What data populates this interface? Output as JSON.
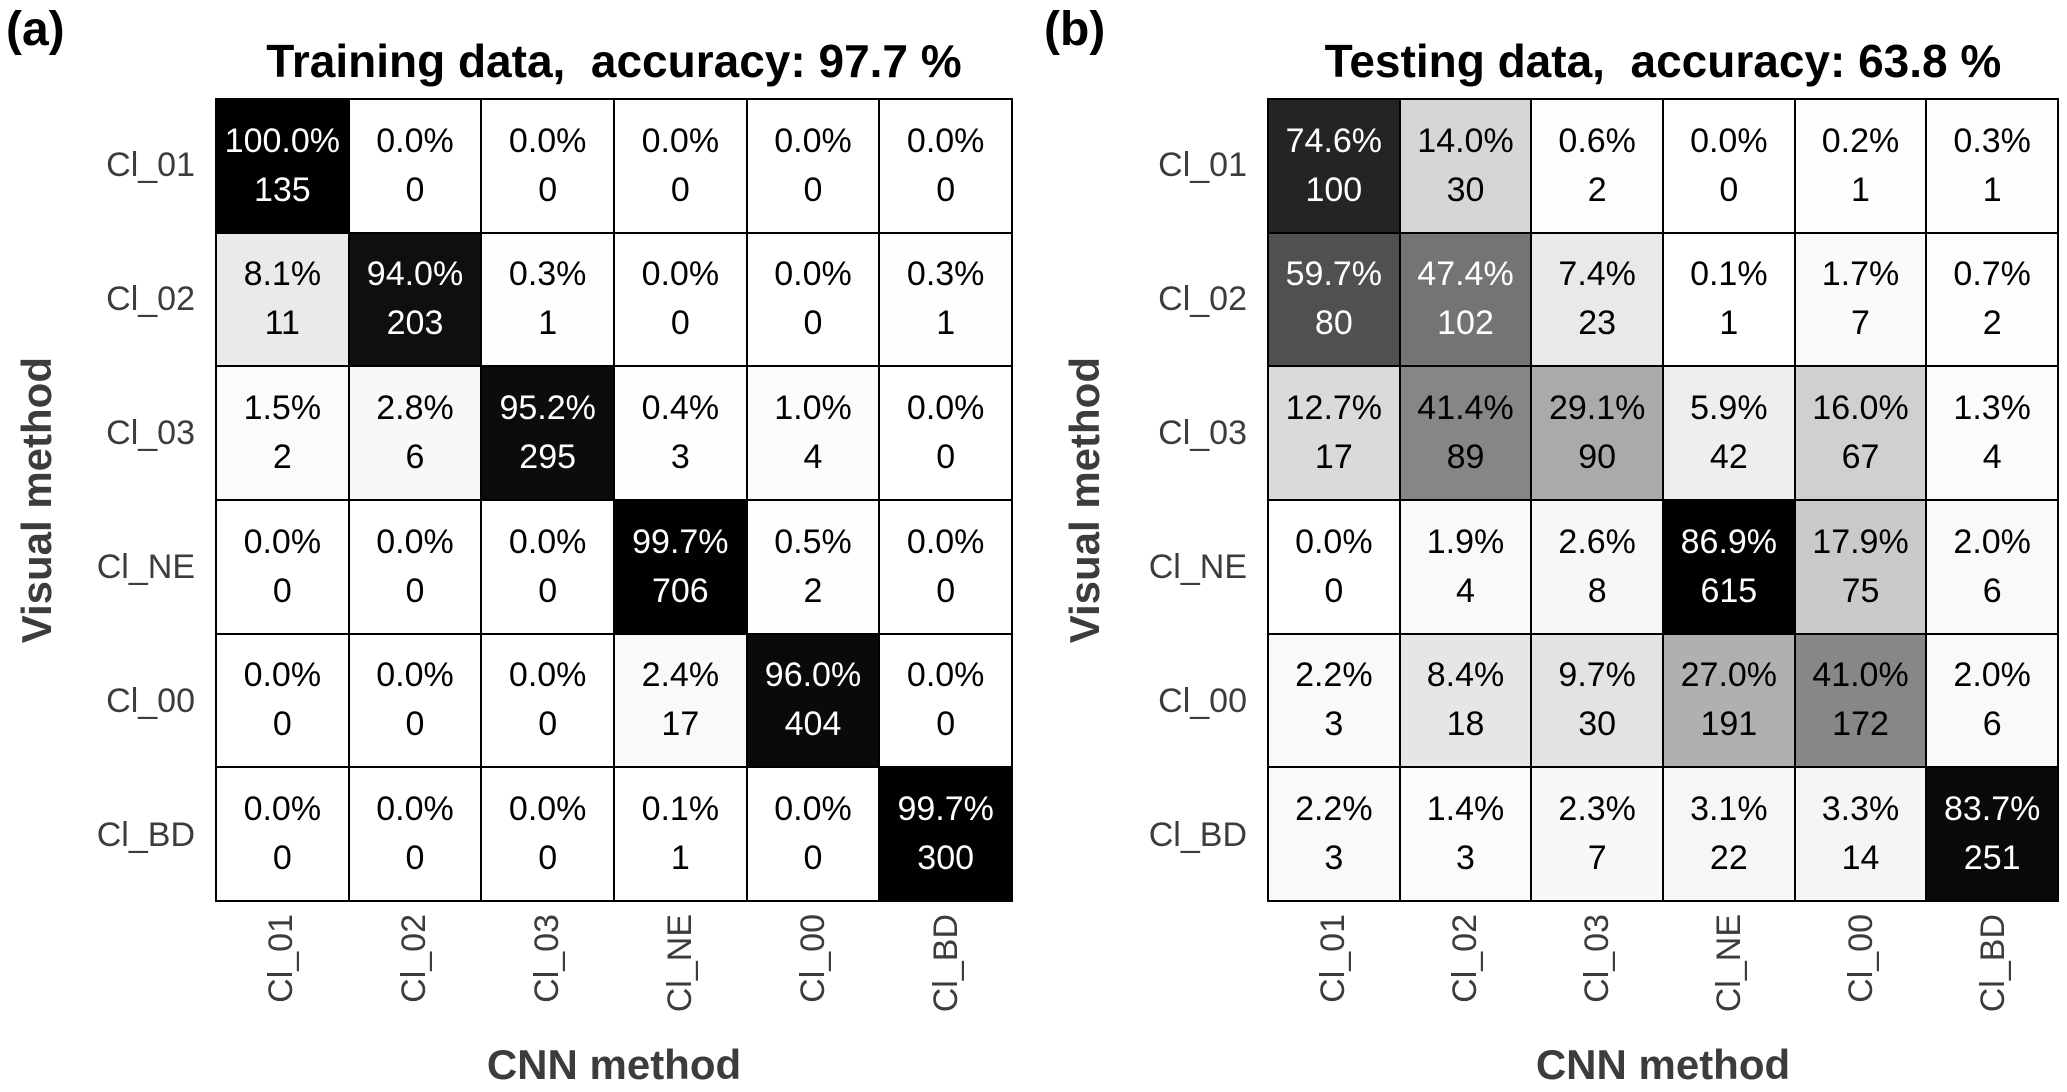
{
  "figure": {
    "background_color": "#ffffff",
    "grid_line_color": "#000000",
    "tick_label_color": "#3c3c3c",
    "axis_title_color": "#3c3c3c",
    "title_color": "#000000"
  },
  "chart_data": [
    {
      "type": "heatmap",
      "panel_label": "(a)",
      "title": "Training data,  accuracy: 97.7 %",
      "xlabel": "CNN method",
      "ylabel": "Visual method",
      "x_categories": [
        "Cl_01",
        "Cl_02",
        "Cl_03",
        "Cl_NE",
        "Cl_00",
        "Cl_BD"
      ],
      "y_categories": [
        "Cl_01",
        "Cl_02",
        "Cl_03",
        "Cl_NE",
        "Cl_00",
        "Cl_BD"
      ],
      "colormap": {
        "low_color": "#ffffff",
        "high_color": "#000000"
      },
      "legend": "none",
      "cell_pct": [
        [
          100.0,
          0.0,
          0.0,
          0.0,
          0.0,
          0.0
        ],
        [
          8.1,
          94.0,
          0.3,
          0.0,
          0.0,
          0.3
        ],
        [
          1.5,
          2.8,
          95.2,
          0.4,
          1.0,
          0.0
        ],
        [
          0.0,
          0.0,
          0.0,
          99.7,
          0.5,
          0.0
        ],
        [
          0.0,
          0.0,
          0.0,
          2.4,
          96.0,
          0.0
        ],
        [
          0.0,
          0.0,
          0.0,
          0.1,
          0.0,
          99.7
        ]
      ],
      "cell_count": [
        [
          135,
          0,
          0,
          0,
          0,
          0
        ],
        [
          11,
          203,
          1,
          0,
          0,
          1
        ],
        [
          2,
          6,
          295,
          3,
          4,
          0
        ],
        [
          0,
          0,
          0,
          706,
          2,
          0
        ],
        [
          0,
          0,
          0,
          17,
          404,
          0
        ],
        [
          0,
          0,
          0,
          1,
          0,
          300
        ]
      ]
    },
    {
      "type": "heatmap",
      "panel_label": "(b)",
      "title": "Testing data,  accuracy: 63.8 %",
      "xlabel": "CNN method",
      "ylabel": "Visual method",
      "x_categories": [
        "Cl_01",
        "Cl_02",
        "Cl_03",
        "Cl_NE",
        "Cl_00",
        "Cl_BD"
      ],
      "y_categories": [
        "Cl_01",
        "Cl_02",
        "Cl_03",
        "Cl_NE",
        "Cl_00",
        "Cl_BD"
      ],
      "colormap": {
        "low_color": "#ffffff",
        "high_color": "#000000"
      },
      "legend": "none",
      "cell_pct": [
        [
          74.6,
          14.0,
          0.6,
          0.0,
          0.2,
          0.3
        ],
        [
          59.7,
          47.4,
          7.4,
          0.1,
          1.7,
          0.7
        ],
        [
          12.7,
          41.4,
          29.1,
          5.9,
          16.0,
          1.3
        ],
        [
          0.0,
          1.9,
          2.6,
          86.9,
          17.9,
          2.0
        ],
        [
          2.2,
          8.4,
          9.7,
          27.0,
          41.0,
          2.0
        ],
        [
          2.2,
          1.4,
          2.3,
          3.1,
          3.3,
          83.7
        ]
      ],
      "cell_count": [
        [
          100,
          30,
          2,
          0,
          1,
          1
        ],
        [
          80,
          102,
          23,
          1,
          7,
          2
        ],
        [
          17,
          89,
          90,
          42,
          67,
          4
        ],
        [
          0,
          4,
          8,
          615,
          75,
          6
        ],
        [
          3,
          18,
          30,
          191,
          172,
          6
        ],
        [
          3,
          3,
          7,
          22,
          14,
          251
        ]
      ]
    }
  ]
}
